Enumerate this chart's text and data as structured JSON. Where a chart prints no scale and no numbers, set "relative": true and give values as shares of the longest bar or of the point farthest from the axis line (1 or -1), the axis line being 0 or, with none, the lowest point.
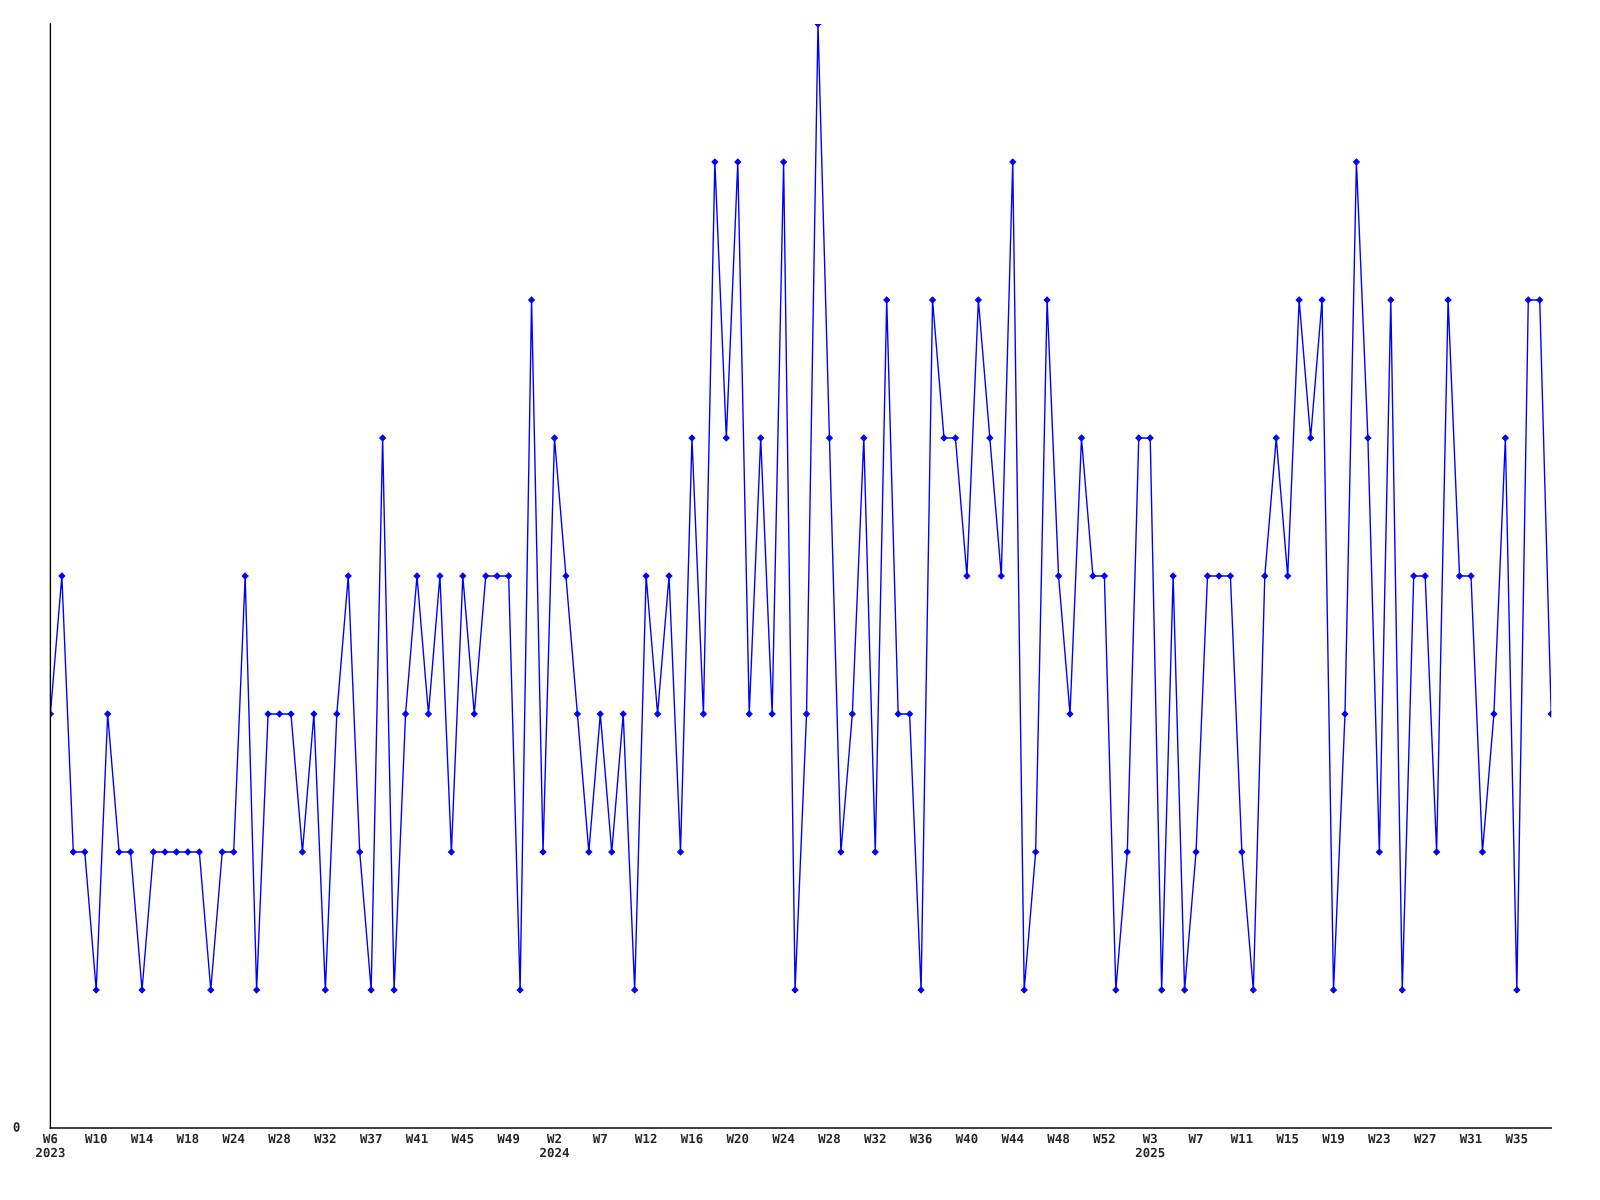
{
  "chart_data": {
    "type": "line",
    "relative": true,
    "color": "#0000ff",
    "marker": "diamond",
    "line_style": "solid",
    "grid": false,
    "legend": false,
    "annotations": [
      "0"
    ],
    "categories": [
      "W6\n2023",
      null,
      null,
      null,
      "W10",
      null,
      null,
      null,
      "W14",
      null,
      null,
      null,
      "W18",
      null,
      null,
      null,
      "W24",
      null,
      null,
      null,
      "W28",
      null,
      null,
      null,
      "W32",
      null,
      null,
      null,
      "W37",
      null,
      null,
      null,
      "W41",
      null,
      null,
      null,
      "W45",
      null,
      null,
      null,
      "W49",
      null,
      null,
      null,
      "W2\n2024",
      null,
      null,
      null,
      "W7",
      null,
      null,
      null,
      "W12",
      null,
      null,
      null,
      "W16",
      null,
      null,
      null,
      "W20",
      null,
      null,
      null,
      "W24",
      null,
      null,
      null,
      "W28",
      null,
      null,
      null,
      "W32",
      null,
      null,
      null,
      "W36",
      null,
      null,
      null,
      "W40",
      null,
      null,
      null,
      "W44",
      null,
      null,
      null,
      "W48",
      null,
      null,
      null,
      "W52",
      null,
      null,
      null,
      "W3\n2025",
      null,
      null,
      null,
      "W7",
      null,
      null,
      null,
      "W11",
      null,
      null,
      null,
      "W15",
      null,
      null,
      null,
      "W19",
      null,
      null,
      null,
      "W23",
      null,
      null,
      null,
      "W27",
      null,
      null,
      null,
      "W31",
      null,
      null,
      null,
      "W35",
      null,
      null,
      null
    ],
    "values": [
      0.375,
      0.5,
      0.25,
      0.25,
      0.125,
      0.375,
      0.25,
      0.25,
      0.125,
      0.25,
      0.25,
      0.25,
      0.25,
      0.25,
      0.125,
      0.25,
      0.25,
      0.5,
      0.125,
      0.375,
      0.375,
      0.375,
      0.25,
      0.375,
      0.125,
      0.375,
      0.5,
      0.25,
      0.125,
      0.625,
      0.125,
      0.375,
      0.5,
      0.375,
      0.5,
      0.25,
      0.5,
      0.375,
      0.5,
      0.5,
      0.5,
      0.125,
      0.75,
      0.25,
      0.625,
      0.5,
      0.375,
      0.25,
      0.375,
      0.25,
      0.375,
      0.125,
      0.5,
      0.375,
      0.5,
      0.25,
      0.625,
      0.375,
      0.875,
      0.625,
      0.875,
      0.375,
      0.625,
      0.375,
      0.875,
      0.125,
      0.375,
      1,
      0.625,
      0.25,
      0.375,
      0.625,
      0.25,
      0.75,
      0.375,
      0.375,
      0.125,
      0.75,
      0.625,
      0.625,
      0.5,
      0.75,
      0.625,
      0.5,
      0.875,
      0.125,
      0.25,
      0.75,
      0.5,
      0.375,
      0.625,
      0.5,
      0.5,
      0.125,
      0.25,
      0.625,
      0.625,
      0.125,
      0.5,
      0.125,
      0.25,
      0.5,
      0.5,
      0.5,
      0.25,
      0.125,
      0.5,
      0.625,
      0.5,
      0.75,
      0.625,
      0.75,
      0.125,
      0.375,
      0.875,
      0.625,
      0.25,
      0.75,
      0.125,
      0.5,
      0.5,
      0.25,
      0.75,
      0.5,
      0.5,
      0.25,
      0.375,
      0.625,
      0.125,
      0.75,
      0.75,
      0.375
    ]
  }
}
